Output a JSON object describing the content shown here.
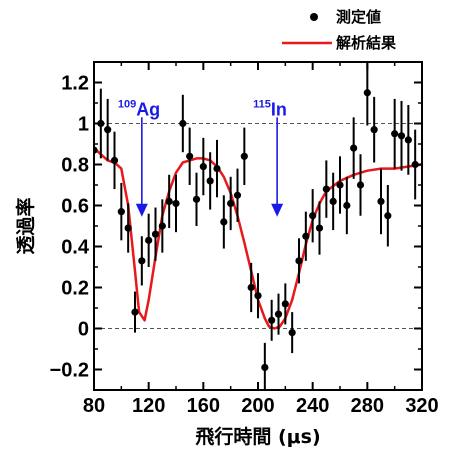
{
  "chart_data": {
    "type": "scatter",
    "xlabel": "飛行時間 (μs)",
    "ylabel": "透過率",
    "xlim": [
      80,
      320
    ],
    "ylim": [
      -0.3,
      1.3
    ],
    "xticks": [
      80,
      120,
      160,
      200,
      240,
      280,
      320
    ],
    "xtick_labels": [
      "80",
      "120",
      "160",
      "200",
      "240",
      "280",
      "320"
    ],
    "yticks": [
      -0.2,
      0,
      0.2,
      0.4,
      0.6,
      0.8,
      1,
      1.2
    ],
    "ytick_labels": [
      "−0.2",
      "0",
      "0.2",
      "0.4",
      "0.6",
      "0.8",
      "1",
      "1.2"
    ],
    "reference_lines": [
      0,
      1
    ],
    "legend": {
      "position": "top-right",
      "entries": [
        {
          "label": "測定値",
          "marker": "dot",
          "color": "#000000"
        },
        {
          "label": "解析結果",
          "marker": "line",
          "color": "#e8181c"
        }
      ]
    },
    "series": [
      {
        "name": "測定値",
        "type": "scatter",
        "color": "#000000",
        "x": [
          80,
          85,
          90,
          95,
          100,
          105,
          110,
          115,
          120,
          125,
          130,
          135,
          140,
          145,
          150,
          155,
          160,
          165,
          170,
          175,
          180,
          185,
          190,
          195,
          200,
          205,
          210,
          215,
          220,
          225,
          230,
          235,
          240,
          245,
          250,
          255,
          260,
          265,
          270,
          275,
          280,
          285,
          290,
          295,
          300,
          305,
          310,
          315
        ],
        "y": [
          0.87,
          1.0,
          0.97,
          0.82,
          0.57,
          0.49,
          0.08,
          0.33,
          0.43,
          0.46,
          0.5,
          0.62,
          0.61,
          1.0,
          0.84,
          0.63,
          0.79,
          0.72,
          0.78,
          0.52,
          0.61,
          0.65,
          0.84,
          0.2,
          0.16,
          -0.19,
          0.04,
          0.07,
          0.12,
          -0.02,
          0.33,
          0.45,
          0.55,
          0.49,
          0.68,
          0.62,
          0.7,
          0.6,
          0.88,
          0.7,
          1.15,
          0.97,
          0.62,
          0.55,
          0.95,
          0.94,
          0.92,
          0.8
        ],
        "yerr": [
          0.15,
          0.17,
          0.15,
          0.14,
          0.14,
          0.12,
          0.1,
          0.12,
          0.13,
          0.13,
          0.13,
          0.13,
          0.14,
          0.14,
          0.14,
          0.13,
          0.14,
          0.14,
          0.14,
          0.13,
          0.13,
          0.13,
          0.14,
          0.12,
          0.11,
          0.12,
          0.1,
          0.1,
          0.1,
          0.1,
          0.11,
          0.12,
          0.13,
          0.13,
          0.14,
          0.14,
          0.14,
          0.14,
          0.15,
          0.15,
          0.16,
          0.16,
          0.16,
          0.15,
          0.17,
          0.17,
          0.17,
          0.17
        ]
      },
      {
        "name": "解析結果",
        "type": "line",
        "color": "#e8181c",
        "x": [
          80,
          85,
          90,
          95,
          100,
          105,
          110,
          113,
          117,
          120,
          125,
          130,
          135,
          140,
          145,
          150,
          155,
          160,
          165,
          170,
          175,
          180,
          185,
          190,
          195,
          200,
          205,
          208,
          212,
          216,
          220,
          225,
          230,
          235,
          240,
          245,
          250,
          260,
          270,
          280,
          290,
          300,
          310,
          320
        ],
        "y": [
          0.88,
          0.85,
          0.82,
          0.81,
          0.78,
          0.6,
          0.28,
          0.08,
          0.04,
          0.14,
          0.35,
          0.55,
          0.67,
          0.76,
          0.81,
          0.82,
          0.83,
          0.83,
          0.82,
          0.79,
          0.74,
          0.66,
          0.55,
          0.42,
          0.28,
          0.14,
          0.05,
          0.01,
          0.0,
          0.01,
          0.05,
          0.14,
          0.27,
          0.41,
          0.53,
          0.61,
          0.67,
          0.72,
          0.75,
          0.77,
          0.78,
          0.78,
          0.79,
          0.8
        ]
      }
    ],
    "annotations": [
      {
        "name": "ag",
        "label_sup": "109",
        "label_main": "Ag",
        "x": 115,
        "arrow_from_y": 1.03,
        "arrow_to_y": 0.55
      },
      {
        "name": "in",
        "label_sup": "115",
        "label_main": "In",
        "x": 214,
        "arrow_from_y": 1.03,
        "arrow_to_y": 0.55
      }
    ]
  }
}
